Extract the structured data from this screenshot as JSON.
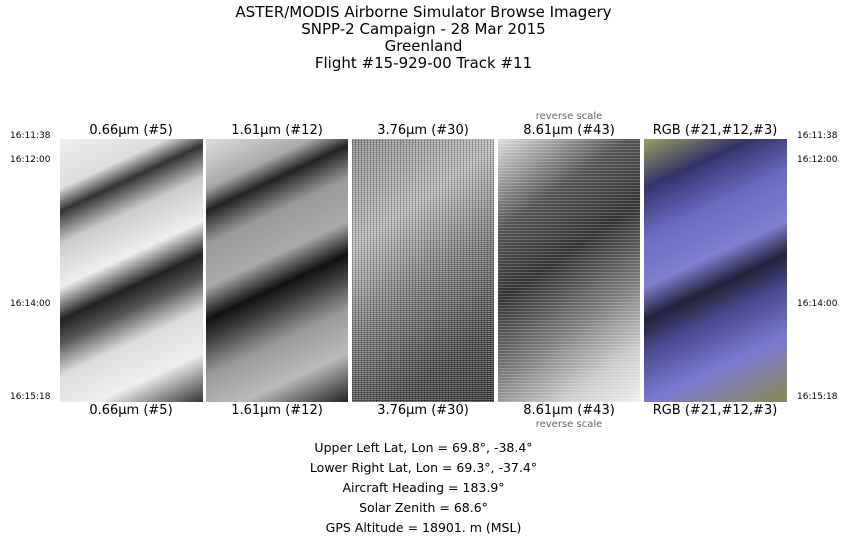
{
  "title_lines": [
    "ASTER/MODIS Airborne Simulator Browse Imagery",
    "SNPP-2 Campaign - 28 Mar 2015",
    "Greenland",
    "Flight #15-929-00 Track #11"
  ],
  "panels": [
    {
      "label": "0.66μm (#5)"
    },
    {
      "label": "1.61μm (#12)"
    },
    {
      "label": "3.76μm (#30)"
    },
    {
      "label": "8.61μm (#43)",
      "note": "reverse scale"
    },
    {
      "label": "RGB (#21,#12,#3)"
    }
  ],
  "times": [
    "16:11:38",
    "16:12:00",
    "16:14:00",
    "16:15:18"
  ],
  "info": {
    "upper_left": "Upper Left Lat, Lon =   69.8°,  -38.4°",
    "lower_right": "Lower Right Lat, Lon =   69.3°,  -37.4°",
    "heading": "Aircraft Heading =  183.9°",
    "zenith": "Solar Zenith =   68.6°",
    "altitude": "GPS Altitude =  18901. m (MSL)"
  }
}
